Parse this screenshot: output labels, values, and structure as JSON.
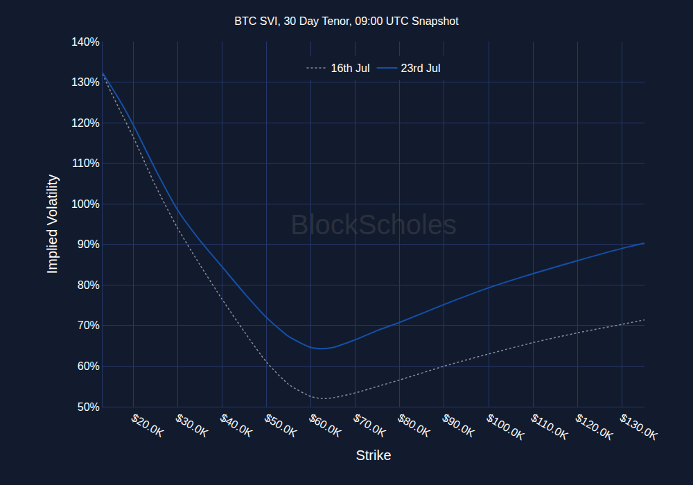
{
  "chart_data": {
    "type": "line",
    "title": "BTC SVI, 30 Day Tenor, 09:00 UTC Snapshot",
    "x_label": "Strike",
    "y_label": "Implied Volatility",
    "annotations": [
      "BlockScholes"
    ],
    "x": [
      13100,
      15000,
      17500,
      20000,
      25000,
      30000,
      35000,
      40000,
      45000,
      50000,
      55000,
      60000,
      62500,
      65000,
      70000,
      75000,
      80000,
      90000,
      100000,
      110000,
      120000,
      130000,
      135100
    ],
    "series": [
      {
        "name": "16th Jul",
        "color": "#8a8f99",
        "line_style": "dotted",
        "values": [
          132,
          127.5,
          122,
          116.5,
          104.5,
          94,
          85,
          76.5,
          68.5,
          61,
          55.5,
          52.5,
          52,
          52.2,
          53.4,
          55,
          56.6,
          60,
          63,
          65.8,
          68.2,
          70.3,
          71.4
        ]
      },
      {
        "name": "23rd Jul",
        "color": "#1450a8",
        "line_style": "solid",
        "values": [
          132.3,
          129,
          124.5,
          119.5,
          108.5,
          98.5,
          91,
          84.5,
          78,
          72,
          67.3,
          64.6,
          64.3,
          64.6,
          66.5,
          68.8,
          70.8,
          75.2,
          79.3,
          82.8,
          86,
          89,
          90.3
        ]
      }
    ],
    "xlim": [
      13100,
      135100
    ],
    "xticks": [
      {
        "value": 20000,
        "label": "$20.0K"
      },
      {
        "value": 30000,
        "label": "$30.0K"
      },
      {
        "value": 40000,
        "label": "$40.0K"
      },
      {
        "value": 50000,
        "label": "$50.0K"
      },
      {
        "value": 60000,
        "label": "$60.0K"
      },
      {
        "value": 70000,
        "label": "$70.0K"
      },
      {
        "value": 80000,
        "label": "$80.0K"
      },
      {
        "value": 90000,
        "label": "$90.0K"
      },
      {
        "value": 100000,
        "label": "$100.0K"
      },
      {
        "value": 110000,
        "label": "$110.0K"
      },
      {
        "value": 120000,
        "label": "$120.0K"
      },
      {
        "value": 130000,
        "label": "$130.0K"
      }
    ],
    "ylim": [
      50,
      140
    ],
    "yticks": [
      {
        "value": 50,
        "label": "50%"
      },
      {
        "value": 60,
        "label": "60%"
      },
      {
        "value": 70,
        "label": "70%"
      },
      {
        "value": 80,
        "label": "80%"
      },
      {
        "value": 90,
        "label": "90%"
      },
      {
        "value": 100,
        "label": "100%"
      },
      {
        "value": 110,
        "label": "110%"
      },
      {
        "value": 120,
        "label": "120%"
      },
      {
        "value": 130,
        "label": "130%"
      },
      {
        "value": 140,
        "label": "140%"
      }
    ],
    "grid": true,
    "legend": "top"
  }
}
